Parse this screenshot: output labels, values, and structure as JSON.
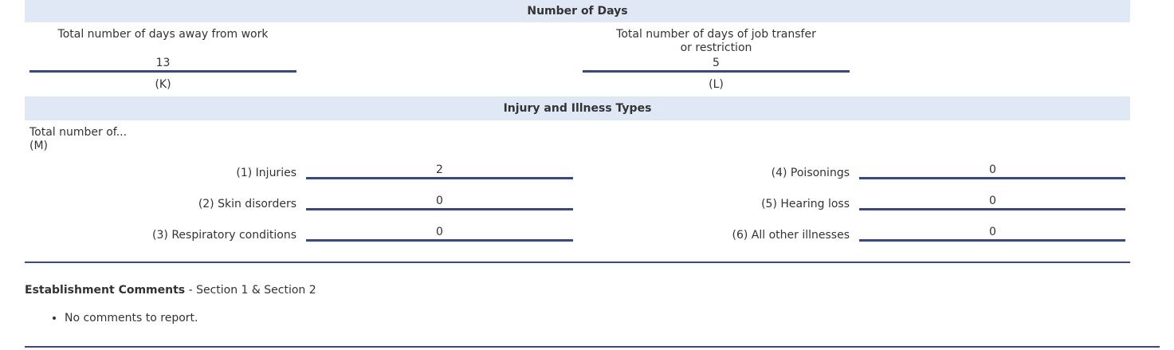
{
  "days_section": {
    "title": "Number of Days",
    "away_label": "Total number of days away from work",
    "away_value": "13",
    "away_code": "(K)",
    "transfer_label": "Total number of days of job transfer or restriction",
    "transfer_value": "5",
    "transfer_code": "(L)"
  },
  "types_section": {
    "title": "Injury and Illness Types",
    "intro": "Total number of...",
    "code": "(M)",
    "left": [
      {
        "label": "(1) Injuries",
        "value": "2"
      },
      {
        "label": "(2) Skin disorders",
        "value": "0"
      },
      {
        "label": "(3) Respiratory conditions",
        "value": "0"
      }
    ],
    "right": [
      {
        "label": "(4) Poisonings",
        "value": "0"
      },
      {
        "label": "(5) Hearing loss",
        "value": "0"
      },
      {
        "label": "(6) All other illnesses",
        "value": "0"
      }
    ]
  },
  "comments": {
    "title": "Establishment Comments",
    "subtitle": " - Section 1 & Section 2",
    "items": [
      "No comments to report."
    ]
  },
  "colors": {
    "header_bg": "#e1e8f5",
    "rule": "#364a87"
  }
}
